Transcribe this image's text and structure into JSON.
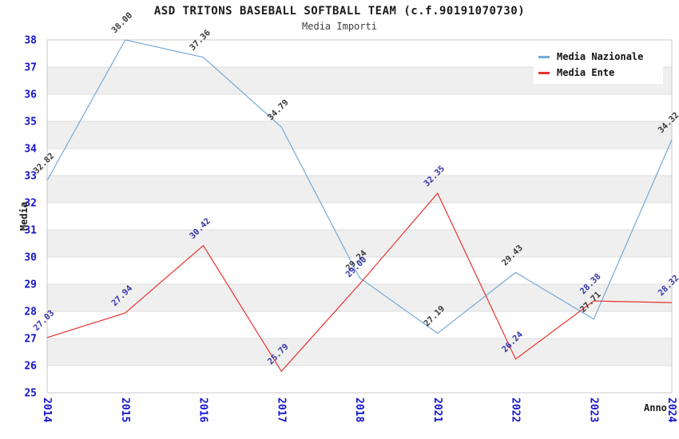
{
  "header": {
    "title": "ASD TRITONS BASEBALL SOFTBALL TEAM (c.f.90191070730)",
    "subtitle": "Media Importi"
  },
  "legend": {
    "items": [
      {
        "label": "Media Nazionale",
        "color": "#74a9d6"
      },
      {
        "label": "Media Ente",
        "color": "#e8322f"
      }
    ]
  },
  "chart_data": {
    "type": "line",
    "title": "ASD TRITONS BASEBALL SOFTBALL TEAM (c.f.90191070730)",
    "subtitle": "Media Importi",
    "xlabel": "Anno",
    "ylabel": "Media",
    "categories": [
      "2014",
      "2015",
      "2016",
      "2017",
      "2018",
      "2021",
      "2022",
      "2023",
      "2024"
    ],
    "series": [
      {
        "name": "Media Nazionale",
        "color": "#74a9d6",
        "label_color": "#3a3a3a",
        "values": [
          32.82,
          38.0,
          37.36,
          34.79,
          29.24,
          27.19,
          29.43,
          27.71,
          34.32
        ]
      },
      {
        "name": "Media Ente",
        "color": "#e8322f",
        "label_color": "#3434a8",
        "values": [
          27.03,
          27.94,
          30.42,
          25.79,
          29.0,
          32.35,
          26.24,
          28.38,
          28.32
        ]
      }
    ],
    "ylim": [
      25,
      38
    ],
    "ytick_step": 1,
    "grid": true,
    "legend_position": "top-right",
    "colors": {
      "tick_labels": "#1414cc",
      "band_fill": "#efefef",
      "gridline": "#dcdcdc",
      "plot_border": "#c9c9c9"
    }
  }
}
